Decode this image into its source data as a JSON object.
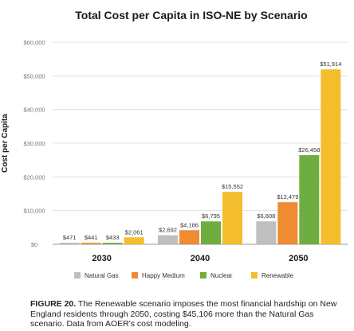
{
  "chart_data": {
    "type": "bar",
    "title": "Total Cost per Capita in ISO-NE by Scenario",
    "ylabel": "Cost per Capita",
    "xlabel": "",
    "categories": [
      "2030",
      "2040",
      "2050"
    ],
    "ylim": [
      0,
      60000
    ],
    "yticks": [
      "$0",
      "$10,000",
      "$20,000",
      "$30,000",
      "$40,000",
      "$50,000",
      "$60,000"
    ],
    "ytick_values": [
      0,
      10000,
      20000,
      30000,
      40000,
      50000,
      60000
    ],
    "grid": true,
    "legend_position": "bottom",
    "series": [
      {
        "name": "Natural Gas",
        "color": "#bfbfbf",
        "values": [
          471,
          2692,
          6808
        ],
        "labels": [
          "$471",
          "$2,692",
          "$6,808"
        ]
      },
      {
        "name": "Happy Medium",
        "color": "#ee8b33",
        "values": [
          441,
          4186,
          12479
        ],
        "labels": [
          "$441",
          "$4,186",
          "$12,479"
        ]
      },
      {
        "name": "Nuclear",
        "color": "#6fae3e",
        "values": [
          433,
          6795,
          26458
        ],
        "labels": [
          "$433",
          "$6,795",
          "$26,458"
        ]
      },
      {
        "name": "Renewable",
        "color": "#f3bd2e",
        "values": [
          2061,
          15552,
          51914
        ],
        "labels": [
          "$2,061",
          "$15,552",
          "$51,914"
        ]
      }
    ]
  },
  "caption": {
    "figure_label": "FIGURE 20.",
    "text": " The Renewable scenario imposes the most financial hardship on New England residents through 2050, costing $45,106 more than the Natural Gas scenario. Data from AOER's cost modeling."
  }
}
